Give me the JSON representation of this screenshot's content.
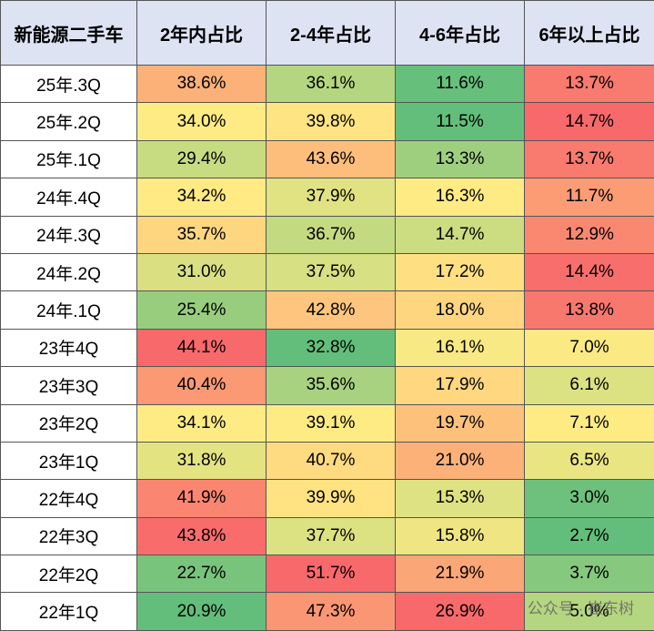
{
  "table": {
    "header": [
      "新能源二手车",
      "2年内占比",
      "2-4年占比",
      "4-6年占比",
      "6年以上占比"
    ],
    "rows": [
      [
        "25年.3Q",
        "38.6%",
        "36.1%",
        "11.6%",
        "13.7%"
      ],
      [
        "25年.2Q",
        "34.0%",
        "39.8%",
        "11.5%",
        "14.7%"
      ],
      [
        "25年.1Q",
        "29.4%",
        "43.6%",
        "13.3%",
        "13.7%"
      ],
      [
        "24年.4Q",
        "34.2%",
        "37.9%",
        "16.3%",
        "11.7%"
      ],
      [
        "24年.3Q",
        "35.7%",
        "36.7%",
        "14.7%",
        "12.9%"
      ],
      [
        "24年.2Q",
        "31.0%",
        "37.5%",
        "17.2%",
        "14.4%"
      ],
      [
        "24年.1Q",
        "25.4%",
        "42.8%",
        "18.0%",
        "13.8%"
      ],
      [
        "23年4Q",
        "44.1%",
        "32.8%",
        "16.1%",
        "7.0%"
      ],
      [
        "23年3Q",
        "40.4%",
        "35.6%",
        "17.9%",
        "6.1%"
      ],
      [
        "23年2Q",
        "34.1%",
        "39.1%",
        "19.7%",
        "7.1%"
      ],
      [
        "23年1Q",
        "31.8%",
        "40.7%",
        "21.0%",
        "6.5%"
      ],
      [
        "22年4Q",
        "41.9%",
        "39.9%",
        "15.3%",
        "3.0%"
      ],
      [
        "22年3Q",
        "43.8%",
        "37.7%",
        "15.8%",
        "2.7%"
      ],
      [
        "22年2Q",
        "22.7%",
        "51.7%",
        "21.9%",
        "3.7%"
      ],
      [
        "22年1Q",
        "20.9%",
        "47.3%",
        "26.9%",
        "5.0%"
      ]
    ],
    "color_scale": {
      "low": "#63be7b",
      "mid": "#ffeb84",
      "high": "#f8696b"
    },
    "header_color": "#dde3f3"
  },
  "watermark": "公众号 · 崔东树"
}
